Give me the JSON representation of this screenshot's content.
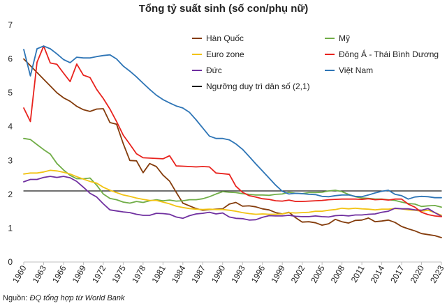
{
  "chart_data": {
    "type": "line",
    "title": "Tổng tỷ suất sinh (số con/phụ nữ)",
    "xlabel": "",
    "ylabel": "",
    "ylim": [
      0,
      7
    ],
    "yticks": [
      0,
      1,
      2,
      3,
      4,
      5,
      6,
      7
    ],
    "xlim": [
      1960,
      2023
    ],
    "xticks": [
      1960,
      1963,
      1966,
      1969,
      1972,
      1975,
      1978,
      1981,
      1984,
      1987,
      1990,
      1993,
      1996,
      1999,
      2002,
      2005,
      2008,
      2011,
      2014,
      2017,
      2020,
      2023
    ],
    "grid": false,
    "legend_position": "top-right, two columns",
    "series": [
      {
        "name": "Hàn Quốc",
        "color": "#843c0c",
        "x": [
          1960,
          1961,
          1962,
          1963,
          1964,
          1965,
          1966,
          1967,
          1968,
          1969,
          1970,
          1971,
          1972,
          1973,
          1974,
          1975,
          1976,
          1977,
          1978,
          1979,
          1980,
          1981,
          1982,
          1983,
          1984,
          1985,
          1986,
          1987,
          1988,
          1989,
          1990,
          1991,
          1992,
          1993,
          1994,
          1995,
          1996,
          1997,
          1998,
          1999,
          2000,
          2001,
          2002,
          2003,
          2004,
          2005,
          2006,
          2007,
          2008,
          2009,
          2010,
          2011,
          2012,
          2013,
          2014,
          2015,
          2016,
          2017,
          2018,
          2019,
          2020,
          2021,
          2022,
          2023
        ],
        "y": [
          6.0,
          5.8,
          5.6,
          5.4,
          5.2,
          5.0,
          4.85,
          4.75,
          4.6,
          4.5,
          4.45,
          4.52,
          4.53,
          4.12,
          4.07,
          3.5,
          3.0,
          2.99,
          2.64,
          2.91,
          2.82,
          2.57,
          2.39,
          2.06,
          1.74,
          1.66,
          1.58,
          1.53,
          1.55,
          1.56,
          1.57,
          1.71,
          1.76,
          1.65,
          1.66,
          1.63,
          1.57,
          1.54,
          1.46,
          1.42,
          1.47,
          1.31,
          1.18,
          1.19,
          1.16,
          1.09,
          1.13,
          1.26,
          1.19,
          1.15,
          1.23,
          1.24,
          1.3,
          1.19,
          1.21,
          1.24,
          1.17,
          1.05,
          0.98,
          0.92,
          0.84,
          0.81,
          0.78,
          0.72
        ]
      },
      {
        "name": "Mỹ",
        "color": "#70ad47",
        "x": [
          1960,
          1961,
          1962,
          1963,
          1964,
          1965,
          1966,
          1967,
          1968,
          1969,
          1970,
          1971,
          1972,
          1973,
          1974,
          1975,
          1976,
          1977,
          1978,
          1979,
          1980,
          1981,
          1982,
          1983,
          1984,
          1985,
          1986,
          1987,
          1988,
          1989,
          1990,
          1991,
          1992,
          1993,
          1994,
          1995,
          1996,
          1997,
          1998,
          1999,
          2000,
          2001,
          2002,
          2003,
          2004,
          2005,
          2006,
          2007,
          2008,
          2009,
          2010,
          2011,
          2012,
          2013,
          2014,
          2015,
          2016,
          2017,
          2018,
          2019,
          2020,
          2021,
          2022,
          2023
        ],
        "y": [
          3.65,
          3.62,
          3.47,
          3.32,
          3.19,
          2.91,
          2.72,
          2.56,
          2.46,
          2.46,
          2.48,
          2.27,
          2.01,
          1.88,
          1.84,
          1.77,
          1.74,
          1.79,
          1.76,
          1.81,
          1.84,
          1.81,
          1.83,
          1.8,
          1.81,
          1.84,
          1.84,
          1.87,
          1.93,
          2.01,
          2.08,
          2.06,
          2.05,
          2.02,
          2.0,
          1.98,
          1.98,
          1.97,
          2.0,
          2.01,
          2.06,
          2.03,
          2.02,
          2.05,
          2.05,
          2.06,
          2.1,
          2.12,
          2.08,
          2.0,
          1.93,
          1.89,
          1.88,
          1.86,
          1.86,
          1.84,
          1.82,
          1.77,
          1.73,
          1.71,
          1.64,
          1.66,
          1.67,
          1.62
        ]
      },
      {
        "name": "Euro zone",
        "color": "#f2c314",
        "x": [
          1960,
          1961,
          1962,
          1963,
          1964,
          1965,
          1966,
          1967,
          1968,
          1969,
          1970,
          1971,
          1972,
          1973,
          1974,
          1975,
          1976,
          1977,
          1978,
          1979,
          1980,
          1981,
          1982,
          1983,
          1984,
          1985,
          1986,
          1987,
          1988,
          1989,
          1990,
          1991,
          1992,
          1993,
          1994,
          1995,
          1996,
          1997,
          1998,
          1999,
          2000,
          2001,
          2002,
          2003,
          2004,
          2005,
          2006,
          2007,
          2008,
          2009,
          2010,
          2011,
          2012,
          2013,
          2014,
          2015,
          2016,
          2017,
          2018,
          2019,
          2020,
          2021,
          2022,
          2023
        ],
        "y": [
          2.6,
          2.63,
          2.63,
          2.66,
          2.71,
          2.69,
          2.65,
          2.6,
          2.52,
          2.45,
          2.38,
          2.33,
          2.21,
          2.12,
          2.05,
          1.98,
          1.94,
          1.89,
          1.85,
          1.82,
          1.82,
          1.77,
          1.72,
          1.65,
          1.61,
          1.58,
          1.56,
          1.55,
          1.56,
          1.55,
          1.55,
          1.53,
          1.5,
          1.46,
          1.43,
          1.41,
          1.42,
          1.41,
          1.41,
          1.42,
          1.46,
          1.45,
          1.46,
          1.47,
          1.5,
          1.5,
          1.53,
          1.55,
          1.59,
          1.57,
          1.59,
          1.57,
          1.56,
          1.54,
          1.56,
          1.56,
          1.58,
          1.57,
          1.54,
          1.53,
          1.5,
          1.53,
          1.46,
          1.38
        ]
      },
      {
        "name": "Đông Á - Thái Bình Dương",
        "color": "#e8231e",
        "x": [
          1960,
          1961,
          1962,
          1963,
          1964,
          1965,
          1966,
          1967,
          1968,
          1969,
          1970,
          1971,
          1972,
          1973,
          1974,
          1975,
          1976,
          1977,
          1978,
          1979,
          1980,
          1981,
          1982,
          1983,
          1984,
          1985,
          1986,
          1987,
          1988,
          1989,
          1990,
          1991,
          1992,
          1993,
          1994,
          1995,
          1996,
          1997,
          1998,
          1999,
          2000,
          2001,
          2002,
          2003,
          2004,
          2005,
          2006,
          2007,
          2008,
          2009,
          2010,
          2011,
          2012,
          2013,
          2014,
          2015,
          2016,
          2017,
          2018,
          2019,
          2020,
          2021,
          2022,
          2023
        ],
        "y": [
          4.55,
          4.15,
          5.9,
          6.38,
          5.88,
          5.84,
          5.58,
          5.33,
          5.85,
          5.52,
          5.45,
          5.1,
          4.83,
          4.52,
          4.15,
          3.75,
          3.48,
          3.2,
          3.08,
          3.07,
          3.06,
          3.05,
          3.14,
          2.84,
          2.83,
          2.82,
          2.81,
          2.82,
          2.81,
          2.63,
          2.61,
          2.59,
          2.24,
          2.06,
          1.96,
          1.92,
          1.87,
          1.85,
          1.81,
          1.8,
          1.83,
          1.79,
          1.79,
          1.8,
          1.81,
          1.82,
          1.84,
          1.85,
          1.86,
          1.86,
          1.86,
          1.85,
          1.87,
          1.84,
          1.85,
          1.83,
          1.86,
          1.86,
          1.71,
          1.62,
          1.47,
          1.4,
          1.36,
          1.34
        ]
      },
      {
        "name": "Đức",
        "color": "#7030a0",
        "x": [
          1960,
          1961,
          1962,
          1963,
          1964,
          1965,
          1966,
          1967,
          1968,
          1969,
          1970,
          1971,
          1972,
          1973,
          1974,
          1975,
          1976,
          1977,
          1978,
          1979,
          1980,
          1981,
          1982,
          1983,
          1984,
          1985,
          1986,
          1987,
          1988,
          1989,
          1990,
          1991,
          1992,
          1993,
          1994,
          1995,
          1996,
          1997,
          1998,
          1999,
          2000,
          2001,
          2002,
          2003,
          2004,
          2005,
          2006,
          2007,
          2008,
          2009,
          2010,
          2011,
          2012,
          2013,
          2014,
          2015,
          2016,
          2017,
          2018,
          2019,
          2020,
          2021,
          2022,
          2023
        ],
        "y": [
          2.37,
          2.44,
          2.44,
          2.5,
          2.53,
          2.5,
          2.53,
          2.49,
          2.38,
          2.21,
          2.03,
          1.92,
          1.72,
          1.54,
          1.51,
          1.48,
          1.46,
          1.41,
          1.38,
          1.38,
          1.44,
          1.43,
          1.41,
          1.33,
          1.29,
          1.37,
          1.42,
          1.44,
          1.47,
          1.42,
          1.45,
          1.33,
          1.29,
          1.28,
          1.24,
          1.25,
          1.32,
          1.37,
          1.36,
          1.36,
          1.38,
          1.35,
          1.34,
          1.34,
          1.36,
          1.34,
          1.33,
          1.37,
          1.38,
          1.36,
          1.39,
          1.39,
          1.41,
          1.42,
          1.47,
          1.5,
          1.59,
          1.57,
          1.57,
          1.54,
          1.53,
          1.58,
          1.46,
          1.35
        ]
      },
      {
        "name": "Việt Nam",
        "color": "#2e75b6",
        "x": [
          1960,
          1961,
          1962,
          1963,
          1964,
          1965,
          1966,
          1967,
          1968,
          1969,
          1970,
          1971,
          1972,
          1973,
          1974,
          1975,
          1976,
          1977,
          1978,
          1979,
          1980,
          1981,
          1982,
          1983,
          1984,
          1985,
          1986,
          1987,
          1988,
          1989,
          1990,
          1991,
          1992,
          1993,
          1994,
          1995,
          1996,
          1997,
          1998,
          1999,
          2000,
          2001,
          2002,
          2003,
          2004,
          2005,
          2006,
          2007,
          2008,
          2009,
          2010,
          2011,
          2012,
          2013,
          2014,
          2015,
          2016,
          2017,
          2018,
          2019,
          2020,
          2021,
          2022,
          2023
        ],
        "y": [
          6.28,
          5.5,
          6.3,
          6.38,
          6.3,
          6.15,
          5.98,
          5.89,
          6.05,
          6.03,
          6.03,
          6.07,
          6.1,
          6.12,
          6.0,
          5.79,
          5.64,
          5.47,
          5.28,
          5.1,
          4.93,
          4.8,
          4.7,
          4.61,
          4.55,
          4.42,
          4.2,
          3.96,
          3.72,
          3.65,
          3.65,
          3.61,
          3.49,
          3.33,
          3.12,
          2.9,
          2.69,
          2.48,
          2.27,
          2.09,
          2.01,
          2.03,
          2.02,
          2.0,
          1.99,
          1.94,
          1.93,
          1.96,
          1.98,
          1.98,
          1.94,
          1.93,
          1.98,
          2.04,
          2.09,
          2.12,
          2.0,
          1.96,
          1.86,
          1.92,
          1.94,
          1.93,
          1.9,
          1.9
        ]
      },
      {
        "name": "Ngưỡng duy trì dân số (2,1)",
        "color": "#1a1a1a",
        "x": [
          1960,
          2023
        ],
        "y": [
          2.1,
          2.1
        ]
      }
    ]
  },
  "source": {
    "prefix": "Nguồn:",
    "text": "ĐQ tổng hợp từ World Bank"
  }
}
